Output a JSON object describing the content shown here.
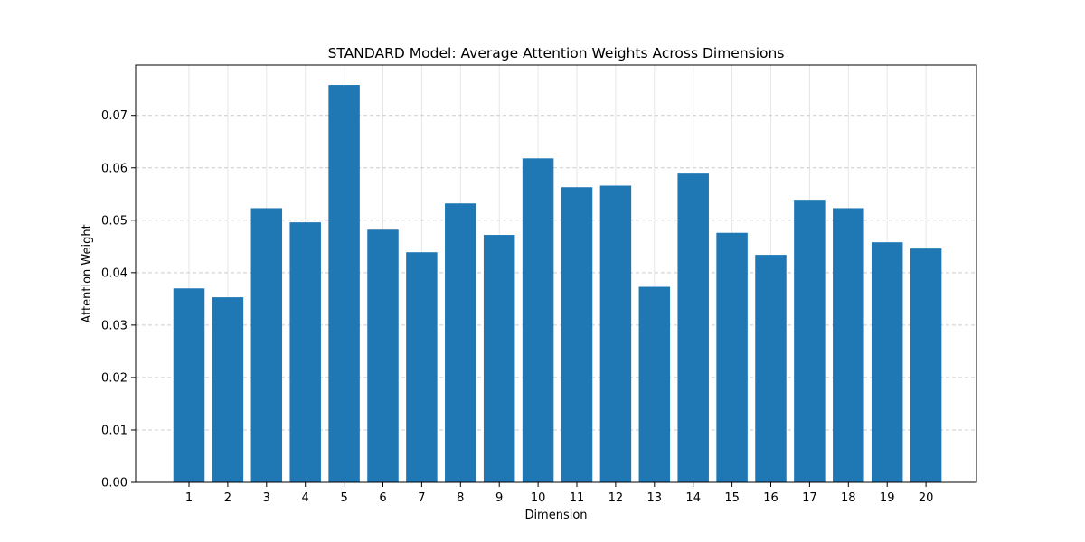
{
  "chart_data": {
    "type": "bar",
    "title": "STANDARD Model: Average Attention Weights Across Dimensions",
    "xlabel": "Dimension",
    "ylabel": "Attention Weight",
    "categories": [
      "1",
      "2",
      "3",
      "4",
      "5",
      "6",
      "7",
      "8",
      "9",
      "10",
      "11",
      "12",
      "13",
      "14",
      "15",
      "16",
      "17",
      "18",
      "19",
      "20"
    ],
    "values": [
      0.037,
      0.0353,
      0.0523,
      0.0496,
      0.0758,
      0.0482,
      0.0439,
      0.0532,
      0.0472,
      0.0618,
      0.0563,
      0.0566,
      0.0373,
      0.0589,
      0.0476,
      0.0434,
      0.0539,
      0.0523,
      0.0458,
      0.0446
    ],
    "ylim": [
      0,
      0.0796
    ],
    "yticks": [
      "0.00",
      "0.01",
      "0.02",
      "0.03",
      "0.04",
      "0.05",
      "0.06",
      "0.07"
    ],
    "grid": {
      "x": true,
      "y": true,
      "y_style": "dashed"
    },
    "bar_color": "#1f77b4",
    "grid_color": "#cccccc"
  }
}
